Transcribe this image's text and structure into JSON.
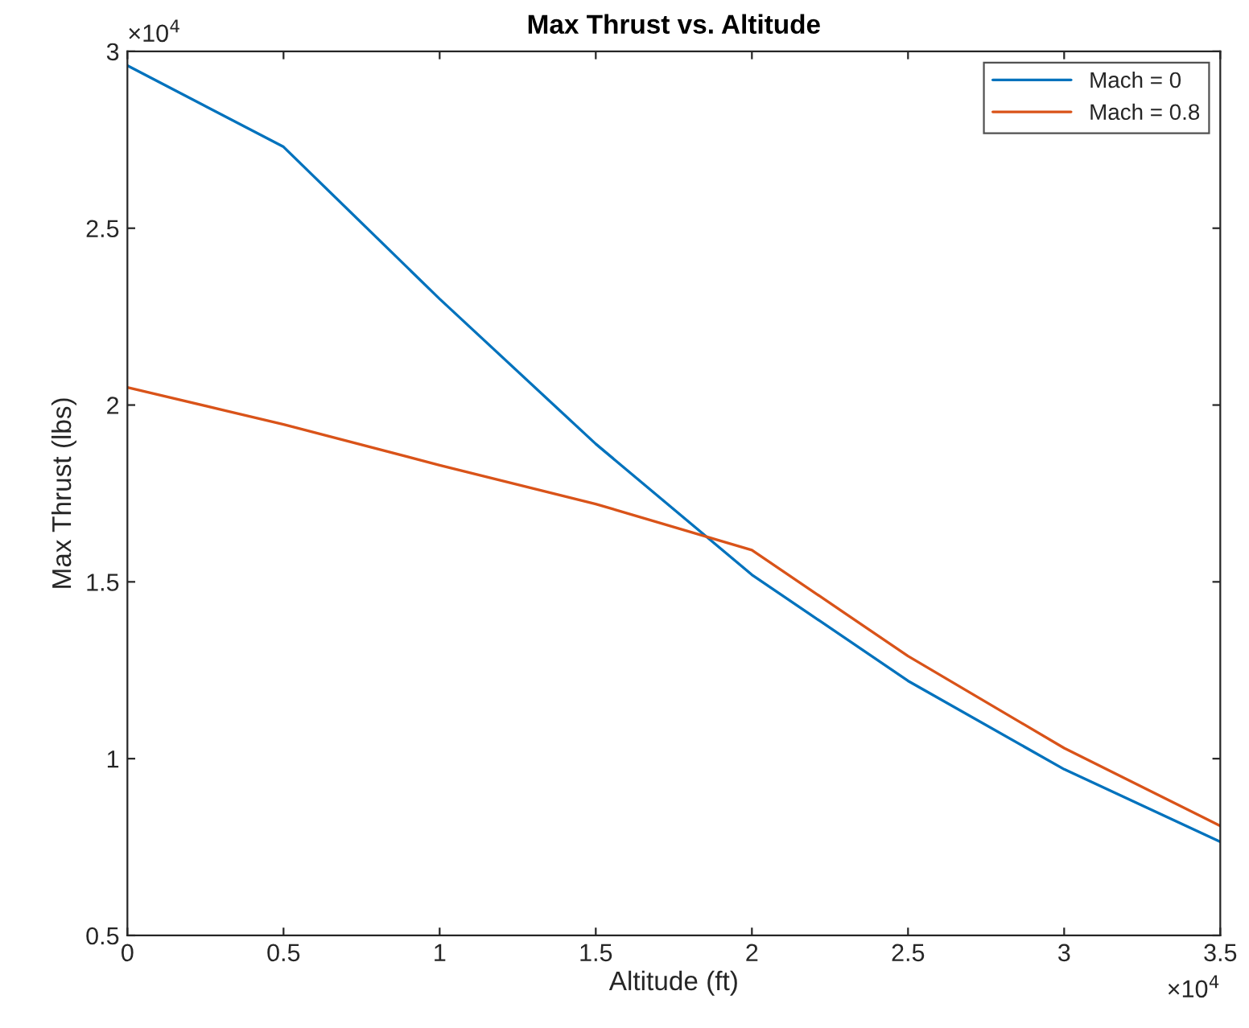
{
  "chart_data": {
    "type": "line",
    "title": "Max Thrust vs. Altitude",
    "xlabel": "Altitude (ft)",
    "ylabel": "Max Thrust (lbs)",
    "x": [
      0,
      0.5,
      1,
      1.5,
      2,
      2.5,
      3,
      3.5
    ],
    "series": [
      {
        "name": "Mach = 0",
        "color": "#0072bd",
        "values": [
          2.96,
          2.73,
          2.3,
          1.89,
          1.52,
          1.22,
          0.97,
          0.765
        ]
      },
      {
        "name": "Mach = 0.8",
        "color": "#d95319",
        "values": [
          2.05,
          1.945,
          1.83,
          1.72,
          1.59,
          1.29,
          1.03,
          0.81
        ]
      }
    ],
    "xlim": [
      0,
      3.5
    ],
    "ylim": [
      0.5,
      3
    ],
    "xticks": [
      0,
      0.5,
      1,
      1.5,
      2,
      2.5,
      3,
      3.5
    ],
    "yticks": [
      0.5,
      1,
      1.5,
      2,
      2.5,
      3
    ],
    "annotations": [
      "×10$^{4}$",
      "×10$^{4}$"
    ],
    "grid": false,
    "legend": "top right",
    "marker": "none",
    "line_style": "solid"
  }
}
